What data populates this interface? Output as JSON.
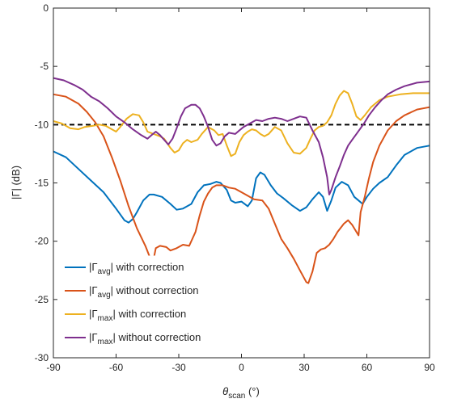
{
  "chart_data": {
    "type": "line",
    "xlabel_main": "θ",
    "xlabel_sub": "scan",
    "xlabel_unit": " (°)",
    "ylabel": "|Γ| (dB)",
    "xlim": [
      -90,
      90
    ],
    "ylim": [
      -30,
      0
    ],
    "xticks": [
      -90,
      -60,
      -30,
      0,
      30,
      60,
      90
    ],
    "yticks": [
      0,
      -5,
      -10,
      -15,
      -20,
      -25,
      -30
    ],
    "grid": false,
    "legend_position": "bottom-left",
    "reference_line": {
      "y": -10,
      "style": "dashed",
      "color": "#000000"
    },
    "series": [
      {
        "legend_pre": "|Γ",
        "legend_sub": "avg",
        "legend_post": "| with correction",
        "color": "#0072BD",
        "points": [
          [
            -90,
            -12.3
          ],
          [
            -84,
            -12.8
          ],
          [
            -78,
            -13.8
          ],
          [
            -72,
            -14.8
          ],
          [
            -66,
            -15.8
          ],
          [
            -60,
            -17.2
          ],
          [
            -56,
            -18.2
          ],
          [
            -54,
            -18.4
          ],
          [
            -52,
            -18.1
          ],
          [
            -50,
            -17.5
          ],
          [
            -47,
            -16.5
          ],
          [
            -44,
            -16.0
          ],
          [
            -42,
            -16.0
          ],
          [
            -38,
            -16.2
          ],
          [
            -34,
            -16.8
          ],
          [
            -31,
            -17.3
          ],
          [
            -28,
            -17.2
          ],
          [
            -24,
            -16.8
          ],
          [
            -21,
            -15.8
          ],
          [
            -18,
            -15.2
          ],
          [
            -15,
            -15.1
          ],
          [
            -12,
            -14.9
          ],
          [
            -10,
            -15.0
          ],
          [
            -7,
            -15.6
          ],
          [
            -5,
            -16.5
          ],
          [
            -3,
            -16.7
          ],
          [
            0,
            -16.6
          ],
          [
            3,
            -17.0
          ],
          [
            5,
            -16.5
          ],
          [
            7,
            -14.6
          ],
          [
            9,
            -14.1
          ],
          [
            11,
            -14.3
          ],
          [
            14,
            -15.2
          ],
          [
            17,
            -15.9
          ],
          [
            20,
            -16.3
          ],
          [
            24,
            -16.9
          ],
          [
            28,
            -17.4
          ],
          [
            31,
            -17.1
          ],
          [
            34,
            -16.4
          ],
          [
            37,
            -15.8
          ],
          [
            39,
            -16.2
          ],
          [
            41,
            -17.4
          ],
          [
            43,
            -16.5
          ],
          [
            45,
            -15.4
          ],
          [
            48,
            -14.9
          ],
          [
            51,
            -15.2
          ],
          [
            54,
            -16.2
          ],
          [
            56,
            -16.5
          ],
          [
            58,
            -16.8
          ],
          [
            60,
            -16.2
          ],
          [
            63,
            -15.5
          ],
          [
            66,
            -15.0
          ],
          [
            70,
            -14.5
          ],
          [
            74,
            -13.5
          ],
          [
            78,
            -12.6
          ],
          [
            84,
            -12.0
          ],
          [
            90,
            -11.8
          ]
        ]
      },
      {
        "legend_pre": "|Γ",
        "legend_sub": "avg",
        "legend_post": "| without correction",
        "color": "#D95319",
        "points": [
          [
            -90,
            -7.4
          ],
          [
            -84,
            -7.6
          ],
          [
            -78,
            -8.2
          ],
          [
            -74,
            -8.9
          ],
          [
            -70,
            -9.8
          ],
          [
            -66,
            -11.0
          ],
          [
            -62,
            -12.8
          ],
          [
            -58,
            -14.8
          ],
          [
            -54,
            -17.0
          ],
          [
            -50,
            -18.9
          ],
          [
            -46,
            -20.4
          ],
          [
            -44,
            -21.3
          ],
          [
            -42,
            -21.5
          ],
          [
            -41,
            -20.6
          ],
          [
            -39,
            -20.4
          ],
          [
            -36,
            -20.5
          ],
          [
            -34,
            -20.8
          ],
          [
            -31,
            -20.6
          ],
          [
            -28,
            -20.3
          ],
          [
            -25,
            -20.4
          ],
          [
            -22,
            -19.2
          ],
          [
            -20,
            -17.8
          ],
          [
            -18,
            -16.6
          ],
          [
            -16,
            -15.9
          ],
          [
            -14,
            -15.4
          ],
          [
            -12,
            -15.2
          ],
          [
            -9,
            -15.2
          ],
          [
            -6,
            -15.4
          ],
          [
            -3,
            -15.5
          ],
          [
            0,
            -15.8
          ],
          [
            3,
            -16.1
          ],
          [
            6,
            -16.4
          ],
          [
            10,
            -16.5
          ],
          [
            13,
            -17.2
          ],
          [
            16,
            -18.5
          ],
          [
            19,
            -19.8
          ],
          [
            22,
            -20.6
          ],
          [
            25,
            -21.5
          ],
          [
            28,
            -22.5
          ],
          [
            31,
            -23.5
          ],
          [
            32,
            -23.6
          ],
          [
            34,
            -22.6
          ],
          [
            36,
            -21.0
          ],
          [
            38,
            -20.7
          ],
          [
            40,
            -20.6
          ],
          [
            42,
            -20.3
          ],
          [
            44,
            -19.8
          ],
          [
            46,
            -19.2
          ],
          [
            49,
            -18.5
          ],
          [
            51,
            -18.2
          ],
          [
            53,
            -18.6
          ],
          [
            55,
            -19.2
          ],
          [
            56,
            -19.5
          ],
          [
            57,
            -17.5
          ],
          [
            59,
            -16.2
          ],
          [
            61,
            -14.6
          ],
          [
            63,
            -13.2
          ],
          [
            66,
            -11.8
          ],
          [
            70,
            -10.5
          ],
          [
            74,
            -9.7
          ],
          [
            78,
            -9.2
          ],
          [
            84,
            -8.7
          ],
          [
            90,
            -8.5
          ]
        ]
      },
      {
        "legend_pre": "|Γ",
        "legend_sub": "max",
        "legend_post": "| with correction",
        "color": "#EDB120",
        "points": [
          [
            -90,
            -9.7
          ],
          [
            -86,
            -9.9
          ],
          [
            -82,
            -10.3
          ],
          [
            -78,
            -10.4
          ],
          [
            -75,
            -10.2
          ],
          [
            -71,
            -10.1
          ],
          [
            -68,
            -10.0
          ],
          [
            -65,
            -10.1
          ],
          [
            -62,
            -10.4
          ],
          [
            -60,
            -10.6
          ],
          [
            -58,
            -10.2
          ],
          [
            -55,
            -9.5
          ],
          [
            -52,
            -9.1
          ],
          [
            -49,
            -9.2
          ],
          [
            -47,
            -9.8
          ],
          [
            -45,
            -10.6
          ],
          [
            -42,
            -10.8
          ],
          [
            -39,
            -11.0
          ],
          [
            -37,
            -11.2
          ],
          [
            -34,
            -12.0
          ],
          [
            -32,
            -12.4
          ],
          [
            -30,
            -12.2
          ],
          [
            -28,
            -11.6
          ],
          [
            -26,
            -11.3
          ],
          [
            -24,
            -11.5
          ],
          [
            -21,
            -11.3
          ],
          [
            -19,
            -10.8
          ],
          [
            -16,
            -10.2
          ],
          [
            -13,
            -10.5
          ],
          [
            -11,
            -10.9
          ],
          [
            -9,
            -10.8
          ],
          [
            -7,
            -11.8
          ],
          [
            -5,
            -12.7
          ],
          [
            -3,
            -12.5
          ],
          [
            -1,
            -11.5
          ],
          [
            1,
            -10.9
          ],
          [
            3,
            -10.6
          ],
          [
            5,
            -10.4
          ],
          [
            7,
            -10.5
          ],
          [
            9,
            -10.8
          ],
          [
            11,
            -11.0
          ],
          [
            13,
            -10.8
          ],
          [
            16,
            -10.2
          ],
          [
            19,
            -10.5
          ],
          [
            22,
            -11.6
          ],
          [
            25,
            -12.4
          ],
          [
            28,
            -12.5
          ],
          [
            31,
            -12.0
          ],
          [
            33,
            -11.2
          ],
          [
            35,
            -10.5
          ],
          [
            37,
            -10.2
          ],
          [
            39,
            -10.1
          ],
          [
            41,
            -9.8
          ],
          [
            43,
            -9.2
          ],
          [
            45,
            -8.2
          ],
          [
            47,
            -7.5
          ],
          [
            49,
            -7.1
          ],
          [
            51,
            -7.3
          ],
          [
            53,
            -8.2
          ],
          [
            55,
            -9.3
          ],
          [
            57,
            -9.6
          ],
          [
            59,
            -9.2
          ],
          [
            62,
            -8.5
          ],
          [
            66,
            -7.9
          ],
          [
            70,
            -7.6
          ],
          [
            76,
            -7.4
          ],
          [
            82,
            -7.3
          ],
          [
            90,
            -7.3
          ]
        ]
      },
      {
        "legend_pre": "|Γ",
        "legend_sub": "max",
        "legend_post": "| without correction",
        "color": "#7E2F8E",
        "points": [
          [
            -90,
            -6.0
          ],
          [
            -85,
            -6.2
          ],
          [
            -80,
            -6.6
          ],
          [
            -76,
            -7.0
          ],
          [
            -72,
            -7.6
          ],
          [
            -68,
            -8.0
          ],
          [
            -64,
            -8.6
          ],
          [
            -60,
            -9.3
          ],
          [
            -56,
            -9.8
          ],
          [
            -52,
            -10.4
          ],
          [
            -48,
            -10.9
          ],
          [
            -45,
            -11.2
          ],
          [
            -43,
            -10.9
          ],
          [
            -41,
            -10.6
          ],
          [
            -39,
            -10.9
          ],
          [
            -37,
            -11.3
          ],
          [
            -35,
            -11.7
          ],
          [
            -33,
            -11.2
          ],
          [
            -31,
            -10.3
          ],
          [
            -29,
            -9.3
          ],
          [
            -27,
            -8.6
          ],
          [
            -24,
            -8.3
          ],
          [
            -22,
            -8.3
          ],
          [
            -20,
            -8.6
          ],
          [
            -18,
            -9.3
          ],
          [
            -16,
            -10.2
          ],
          [
            -14,
            -11.3
          ],
          [
            -12,
            -11.8
          ],
          [
            -10,
            -11.6
          ],
          [
            -8,
            -11.0
          ],
          [
            -6,
            -10.7
          ],
          [
            -3,
            -10.8
          ],
          [
            -1,
            -10.5
          ],
          [
            1,
            -10.2
          ],
          [
            4,
            -9.9
          ],
          [
            7,
            -9.6
          ],
          [
            10,
            -9.7
          ],
          [
            13,
            -9.5
          ],
          [
            16,
            -9.4
          ],
          [
            19,
            -9.5
          ],
          [
            22,
            -9.7
          ],
          [
            25,
            -9.5
          ],
          [
            28,
            -9.3
          ],
          [
            31,
            -9.4
          ],
          [
            34,
            -10.5
          ],
          [
            37,
            -11.5
          ],
          [
            39,
            -12.8
          ],
          [
            41,
            -14.5
          ],
          [
            42,
            -16.0
          ],
          [
            43,
            -15.6
          ],
          [
            45,
            -14.5
          ],
          [
            47,
            -13.6
          ],
          [
            49,
            -12.6
          ],
          [
            51,
            -11.8
          ],
          [
            53,
            -11.3
          ],
          [
            55,
            -10.8
          ],
          [
            57,
            -10.3
          ],
          [
            59,
            -9.8
          ],
          [
            61,
            -9.2
          ],
          [
            64,
            -8.5
          ],
          [
            67,
            -7.9
          ],
          [
            70,
            -7.4
          ],
          [
            74,
            -7.0
          ],
          [
            78,
            -6.7
          ],
          [
            84,
            -6.4
          ],
          [
            90,
            -6.3
          ]
        ]
      }
    ]
  }
}
